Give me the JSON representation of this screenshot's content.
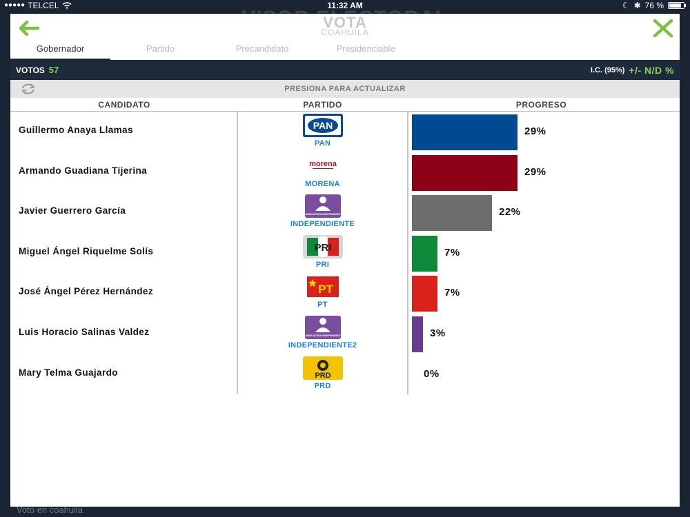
{
  "status_bar": {
    "carrier": "TELCEL",
    "time": "11:32 AM",
    "battery": "76 %",
    "battery_level": 0.76
  },
  "background": {
    "title": "VISOR ELECTORAL",
    "footer": "Voto en coahuila"
  },
  "header": {
    "title": "VOTA",
    "subtitle": "COAHUILA"
  },
  "tabs": [
    {
      "label": "Gobernador",
      "active": true
    },
    {
      "label": "Partido",
      "active": false
    },
    {
      "label": "Precandidato",
      "active": false
    },
    {
      "label": "Presidenciable",
      "active": false
    }
  ],
  "summary": {
    "votes_label": "VOTOS",
    "votes_value": "57",
    "ic_label": "I.C. (95%)",
    "ic_value": "+/- N/D %"
  },
  "refresh": {
    "label": "PRESIONA PARA ACTUALIZAR"
  },
  "columns": {
    "candidate": "CANDIDATO",
    "party": "PARTIDO",
    "progress": "PROGRESO"
  },
  "colors": {
    "header_bar": "#1d2a3c",
    "accent_green": "#8fd05a",
    "party_link": "#1a7ee0"
  },
  "candidates": [
    {
      "name": "Guillermo Anaya Llamas",
      "party": "PAN",
      "logo": "pan-logo",
      "percent": 29,
      "percent_label": "29%",
      "color": "#004a92"
    },
    {
      "name": "Armando Guadiana Tijerina",
      "party": "MORENA",
      "logo": "morena-logo",
      "percent": 29,
      "percent_label": "29%",
      "color": "#8e0016"
    },
    {
      "name": "Javier Guerrero García",
      "party": "INDEPENDIENTE",
      "logo": "independiente-logo",
      "percent": 22,
      "percent_label": "22%",
      "color": "#6d6d6d"
    },
    {
      "name": "Miguel Ángel Riquelme Solís",
      "party": "PRI",
      "logo": "pri-logo",
      "percent": 7,
      "percent_label": "7%",
      "color": "#0f8a3b"
    },
    {
      "name": "José Ángel Pérez Hernández",
      "party": "PT",
      "logo": "pt-logo",
      "percent": 7,
      "percent_label": "7%",
      "color": "#d9221c"
    },
    {
      "name": "Luis Horacio Salinas Valdez",
      "party": "INDEPENDIENTE2",
      "logo": "independiente-logo",
      "percent": 3,
      "percent_label": "3%",
      "color": "#6a3b8e"
    },
    {
      "name": "Mary Telma Guajardo",
      "party": "PRD",
      "logo": "prd-logo",
      "percent": 0,
      "percent_label": "0%",
      "color": "#f3c200"
    }
  ],
  "logo_text": {
    "pan": "PAN",
    "morena": "morena",
    "independiente": "CANDIDATURA INDEPENDIENTE",
    "pri": "PRI",
    "pt": "PT",
    "prd": "PRD"
  }
}
